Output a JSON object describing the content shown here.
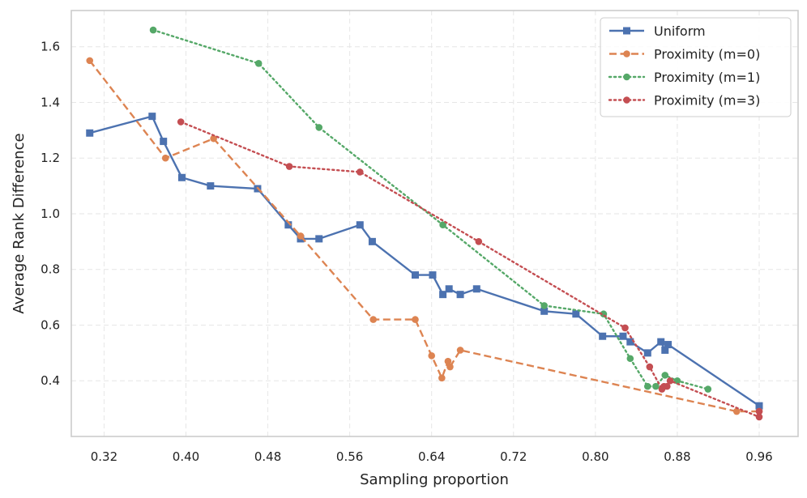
{
  "chart_data": {
    "type": "line",
    "title": "",
    "xlabel": "Sampling proportion",
    "ylabel": "Average Rank Difference",
    "xlim": [
      0.288,
      0.998
    ],
    "ylim": [
      0.2,
      1.73
    ],
    "xticks": [
      0.32,
      0.4,
      0.48,
      0.56,
      0.64,
      0.72,
      0.8,
      0.88,
      0.96
    ],
    "xtick_labels": [
      "0.32",
      "0.40",
      "0.48",
      "0.56",
      "0.64",
      "0.72",
      "0.80",
      "0.88",
      "0.96"
    ],
    "yticks": [
      0.4,
      0.6,
      0.8,
      1.0,
      1.2,
      1.4,
      1.6
    ],
    "ytick_labels": [
      "0.4",
      "0.6",
      "0.8",
      "1.0",
      "1.2",
      "1.4",
      "1.6"
    ],
    "grid": true,
    "legend_position": "top-right",
    "series": [
      {
        "name": "Uniform",
        "color": "#4c72b0",
        "line_style": "solid",
        "marker": "square",
        "x": [
          0.306,
          0.367,
          0.378,
          0.396,
          0.424,
          0.47,
          0.5,
          0.512,
          0.53,
          0.57,
          0.582,
          0.624,
          0.641,
          0.651,
          0.657,
          0.668,
          0.684,
          0.75,
          0.781,
          0.807,
          0.827,
          0.834,
          0.851,
          0.864,
          0.868,
          0.871,
          0.96
        ],
        "y": [
          1.29,
          1.35,
          1.26,
          1.13,
          1.1,
          1.09,
          0.96,
          0.91,
          0.91,
          0.96,
          0.9,
          0.78,
          0.78,
          0.71,
          0.73,
          0.71,
          0.73,
          0.65,
          0.64,
          0.56,
          0.56,
          0.54,
          0.5,
          0.54,
          0.51,
          0.53,
          0.31
        ]
      },
      {
        "name": "Proximity (m=0)",
        "color": "#dd8452",
        "line_style": "dashed",
        "marker": "circle",
        "x": [
          0.306,
          0.38,
          0.427,
          0.512,
          0.583,
          0.624,
          0.64,
          0.65,
          0.656,
          0.658,
          0.668,
          0.938,
          0.96
        ],
        "y": [
          1.55,
          1.2,
          1.27,
          0.92,
          0.62,
          0.62,
          0.49,
          0.41,
          0.47,
          0.45,
          0.51,
          0.29,
          0.29
        ]
      },
      {
        "name": "Proximity (m=1)",
        "color": "#55a868",
        "line_style": "dotted",
        "marker": "circle",
        "x": [
          0.368,
          0.471,
          0.53,
          0.651,
          0.75,
          0.808,
          0.834,
          0.851,
          0.859,
          0.868,
          0.88,
          0.91
        ],
        "y": [
          1.66,
          1.54,
          1.31,
          0.96,
          0.67,
          0.64,
          0.48,
          0.38,
          0.38,
          0.42,
          0.4,
          0.37
        ]
      },
      {
        "name": "Proximity (m=3)",
        "color": "#c44e52",
        "line_style": "dotted",
        "marker": "circle",
        "x": [
          0.395,
          0.501,
          0.57,
          0.686,
          0.829,
          0.853,
          0.865,
          0.867,
          0.87,
          0.873,
          0.96,
          0.96
        ],
        "y": [
          1.33,
          1.17,
          1.15,
          0.9,
          0.59,
          0.45,
          0.37,
          0.38,
          0.38,
          0.4,
          0.27,
          0.29
        ]
      }
    ]
  }
}
